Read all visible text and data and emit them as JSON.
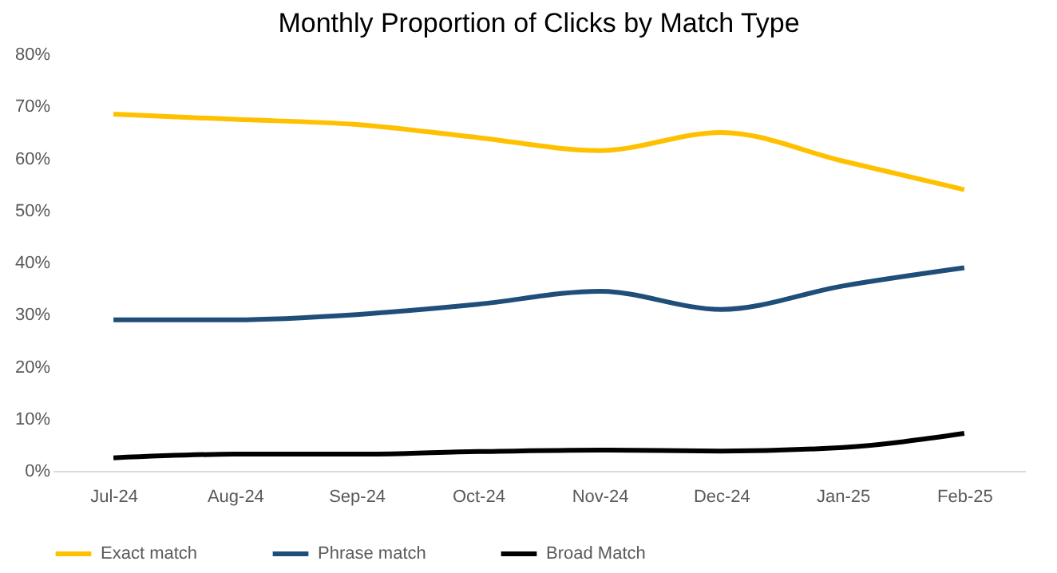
{
  "chart_data": {
    "type": "line",
    "title": "Monthly Proportion of Clicks by Match Type",
    "categories": [
      "Jul-24",
      "Aug-24",
      "Sep-24",
      "Oct-24",
      "Nov-24",
      "Dec-24",
      "Jan-25",
      "Feb-25"
    ],
    "series": [
      {
        "name": "Exact match",
        "color": "#ffc000",
        "values": [
          68.5,
          67.5,
          66.5,
          64,
          61.5,
          65,
          59.5,
          54
        ]
      },
      {
        "name": "Phrase match",
        "color": "#1f4e79",
        "values": [
          29,
          29,
          30,
          32,
          34.5,
          31,
          35.5,
          39
        ]
      },
      {
        "name": "Broad Match",
        "color": "#000000",
        "values": [
          2.5,
          3.2,
          3.2,
          3.7,
          4,
          3.8,
          4.5,
          7.2
        ]
      }
    ],
    "ylim": [
      0,
      80
    ],
    "yticks": [
      {
        "value": 0,
        "label": "0%"
      },
      {
        "value": 10,
        "label": "10%"
      },
      {
        "value": 20,
        "label": "20%"
      },
      {
        "value": 30,
        "label": "30%"
      },
      {
        "value": 40,
        "label": "40%"
      },
      {
        "value": 50,
        "label": "50%"
      },
      {
        "value": 60,
        "label": "60%"
      },
      {
        "value": 70,
        "label": "70%"
      },
      {
        "value": 80,
        "label": "80%"
      }
    ],
    "grid": false,
    "legend": "bottom",
    "marker": "none",
    "line_style": "solid"
  }
}
